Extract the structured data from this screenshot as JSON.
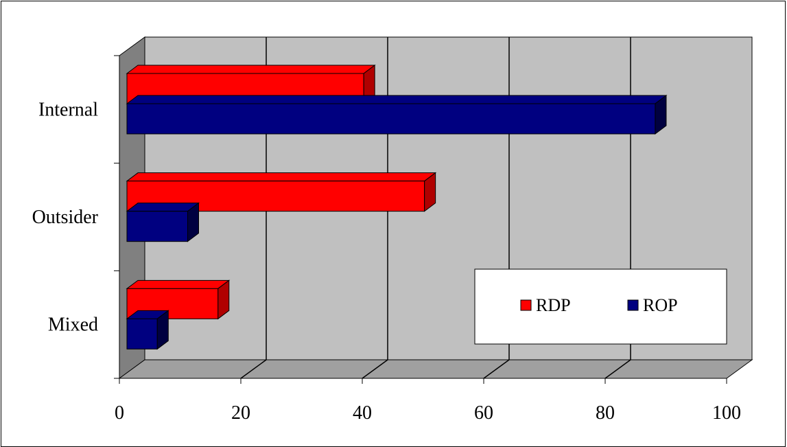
{
  "chart_data": {
    "type": "bar",
    "orientation": "horizontal",
    "style": "3d",
    "categories": [
      "Internal",
      "Outsider",
      "Mixed"
    ],
    "series": [
      {
        "name": "RDP",
        "values": [
          39,
          49,
          15
        ],
        "color": "#ff0000",
        "side_color": "#b00000"
      },
      {
        "name": "ROP",
        "values": [
          87,
          10,
          5
        ],
        "color": "#000080",
        "side_color": "#000040"
      }
    ],
    "xlim": [
      0,
      100
    ],
    "xticks": [
      0,
      20,
      40,
      60,
      80,
      100
    ],
    "grid": true,
    "legend_position": "bottom-right",
    "title": "",
    "xlabel": "",
    "ylabel": "",
    "plot_wall_color": "#c0c0c0",
    "side_wall_color": "#808080",
    "floor_color": "#a0a0a0"
  },
  "legend": {
    "items": [
      {
        "label": "RDP",
        "color": "#ff0000"
      },
      {
        "label": "ROP",
        "color": "#000080"
      }
    ]
  }
}
